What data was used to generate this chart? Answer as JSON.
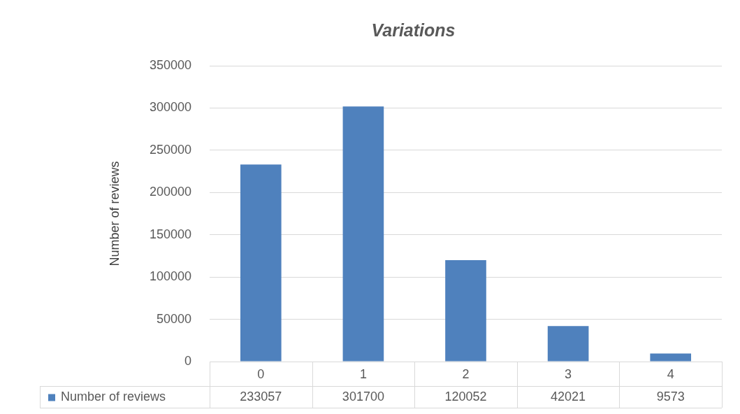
{
  "chart_data": {
    "type": "bar",
    "title": "Variations",
    "ylabel": "Number of reviews",
    "categories": [
      "0",
      "1",
      "2",
      "3",
      "4"
    ],
    "series": [
      {
        "name": "Number of reviews",
        "color": "#4f81bd",
        "values": [
          233057,
          301700,
          120052,
          42021,
          9573
        ]
      }
    ],
    "ylim": [
      0,
      350000
    ],
    "yticks": [
      0,
      50000,
      100000,
      150000,
      200000,
      250000,
      300000,
      350000
    ],
    "grid": "y",
    "legend": "bottom",
    "data_labels": true
  }
}
